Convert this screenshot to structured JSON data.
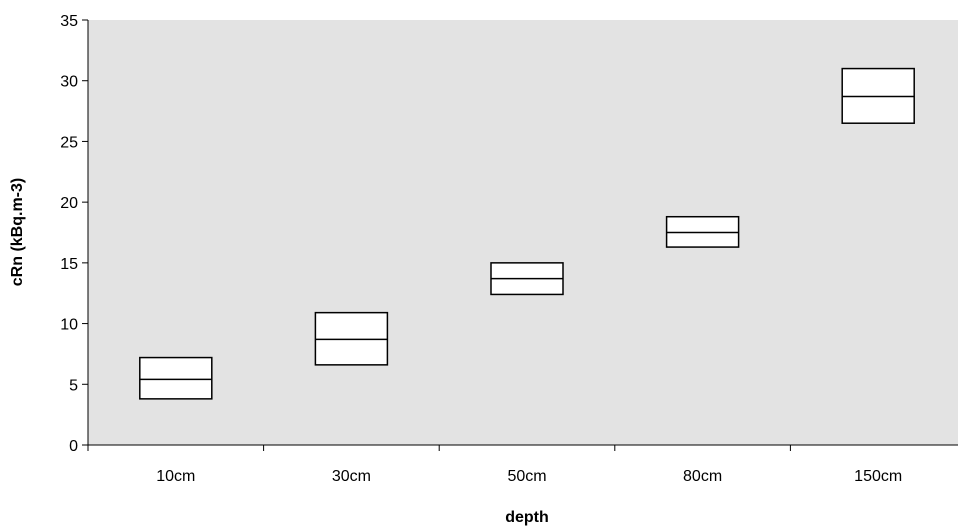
{
  "chart_data": {
    "type": "box",
    "title": "",
    "xlabel": "depth",
    "ylabel": "cRn (kBq.m-3)",
    "ylim": [
      0,
      35
    ],
    "yticks": [
      0,
      5,
      10,
      15,
      20,
      25,
      30,
      35
    ],
    "categories": [
      "10cm",
      "30cm",
      "50cm",
      "80cm",
      "150cm"
    ],
    "boxes": [
      {
        "category": "10cm",
        "low": 3.8,
        "median": 5.4,
        "high": 7.2
      },
      {
        "category": "30cm",
        "low": 6.6,
        "median": 8.7,
        "high": 10.9
      },
      {
        "category": "50cm",
        "low": 12.4,
        "median": 13.7,
        "high": 15.0
      },
      {
        "category": "80cm",
        "low": 16.3,
        "median": 17.5,
        "high": 18.8
      },
      {
        "category": "150cm",
        "low": 26.5,
        "median": 28.7,
        "high": 31.0
      }
    ],
    "grid": false,
    "plot_background": "#e3e3e3",
    "box_fill": "#ffffff",
    "line_color": "#000000"
  }
}
